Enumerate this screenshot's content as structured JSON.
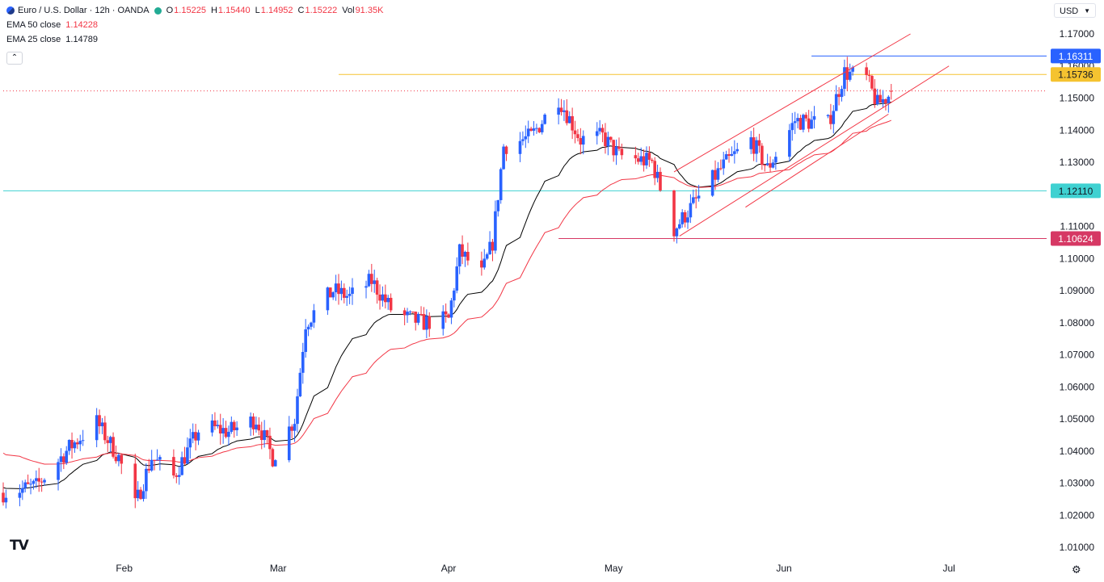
{
  "header": {
    "symbol": "Euro / U.S. Dollar · 12h · OANDA",
    "open_label": "O",
    "open": "1.15225",
    "high_label": "H",
    "high": "1.15440",
    "low_label": "L",
    "low": "1.14952",
    "close_label": "C",
    "close": "1.15222",
    "vol_label": "Vol",
    "vol": "91.35K"
  },
  "indicators": [
    {
      "label": "EMA 50 close",
      "value": "1.14228",
      "color": "#f23645"
    },
    {
      "label": "EMA 25 close",
      "value": "1.14789",
      "color": "#000000"
    }
  ],
  "currency": "USD",
  "logo": "TV",
  "icons": {
    "symbol": "euro-flag-icon",
    "collapse": "chevron-up-icon",
    "settings": "gear-icon",
    "currency": "chevron-down-icon"
  },
  "colors": {
    "up": "#2962ff",
    "down": "#f23645",
    "ema25": "#000000",
    "ema50": "#f23645",
    "channel": "#f23645",
    "support": "#d63864",
    "resistance_yellow": "#f5c330",
    "resistance_blue": "#2962ff",
    "cyan": "#3fd1d1"
  },
  "chart_data": {
    "type": "candlestick",
    "y_ticks": [
      "1.17000",
      "1.16000",
      "1.15000",
      "1.14000",
      "1.13000",
      "1.12000",
      "1.11000",
      "1.10000",
      "1.09000",
      "1.08000",
      "1.07000",
      "1.06000",
      "1.05000",
      "1.04000",
      "1.03000",
      "1.02000",
      "1.01000"
    ],
    "x_ticks": [
      {
        "label": "Feb",
        "date": "2025-02-01"
      },
      {
        "label": "Mar",
        "date": "2025-03-01"
      },
      {
        "label": "Apr",
        "date": "2025-04-01"
      },
      {
        "label": "May",
        "date": "2025-05-01"
      },
      {
        "label": "Jun",
        "date": "2025-06-01"
      },
      {
        "label": "Jul",
        "date": "2025-07-01"
      }
    ],
    "date_range": [
      "2025-01-10",
      "2025-07-12"
    ],
    "ylim": [
      1.0078,
      1.1775
    ],
    "anchors": [
      {
        "date": "2025-01-10",
        "value": 1.027
      },
      {
        "date": "2025-01-16",
        "value": 1.029
      },
      {
        "date": "2025-01-22",
        "value": 1.041
      },
      {
        "date": "2025-01-27",
        "value": 1.049
      },
      {
        "date": "2025-01-31",
        "value": 1.038
      },
      {
        "date": "2025-02-03",
        "value": 1.023
      },
      {
        "date": "2025-02-06",
        "value": 1.038
      },
      {
        "date": "2025-02-10",
        "value": 1.032
      },
      {
        "date": "2025-02-15",
        "value": 1.048
      },
      {
        "date": "2025-02-20",
        "value": 1.046
      },
      {
        "date": "2025-02-25",
        "value": 1.05
      },
      {
        "date": "2025-02-28",
        "value": 1.038
      },
      {
        "date": "2025-03-04",
        "value": 1.05
      },
      {
        "date": "2025-03-06",
        "value": 1.08
      },
      {
        "date": "2025-03-11",
        "value": 1.09
      },
      {
        "date": "2025-03-14",
        "value": 1.088
      },
      {
        "date": "2025-03-18",
        "value": 1.093
      },
      {
        "date": "2025-03-22",
        "value": 1.083
      },
      {
        "date": "2025-03-27",
        "value": 1.08
      },
      {
        "date": "2025-04-01",
        "value": 1.081
      },
      {
        "date": "2025-04-03",
        "value": 1.102
      },
      {
        "date": "2025-04-07",
        "value": 1.095
      },
      {
        "date": "2025-04-09",
        "value": 1.105
      },
      {
        "date": "2025-04-11",
        "value": 1.135
      },
      {
        "date": "2025-04-16",
        "value": 1.138
      },
      {
        "date": "2025-04-21",
        "value": 1.15
      },
      {
        "date": "2025-04-25",
        "value": 1.137
      },
      {
        "date": "2025-04-29",
        "value": 1.138
      },
      {
        "date": "2025-05-02",
        "value": 1.132
      },
      {
        "date": "2025-05-08",
        "value": 1.13
      },
      {
        "date": "2025-05-12",
        "value": 1.109
      },
      {
        "date": "2025-05-16",
        "value": 1.118
      },
      {
        "date": "2025-05-21",
        "value": 1.129
      },
      {
        "date": "2025-05-26",
        "value": 1.137
      },
      {
        "date": "2025-05-29",
        "value": 1.128
      },
      {
        "date": "2025-06-03",
        "value": 1.143
      },
      {
        "date": "2025-06-09",
        "value": 1.142
      },
      {
        "date": "2025-06-12",
        "value": 1.158
      },
      {
        "date": "2025-06-16",
        "value": 1.156
      },
      {
        "date": "2025-06-18",
        "value": 1.148
      },
      {
        "date": "2025-06-21",
        "value": 1.1522
      }
    ],
    "ema25_start": 1.029,
    "ema50_start": 1.04,
    "horizontal_levels": [
      {
        "price": 1.16311,
        "label": "1.16311",
        "color": "#2962ff",
        "from_date": "2025-06-06"
      },
      {
        "price": 1.15736,
        "label": "1.15736",
        "color": "#f5c330",
        "from_date": "2025-03-12"
      },
      {
        "price": 1.1211,
        "label": "1.12110",
        "color": "#3fd1d1",
        "from_date": "2025-01-10"
      },
      {
        "price": 1.10624,
        "label": "1.10624",
        "color": "#d63864",
        "from_date": "2025-04-21"
      }
    ],
    "last_price": 1.15222,
    "channel": [
      {
        "from": {
          "date": "2025-05-12",
          "value": 1.127
        },
        "to": {
          "date": "2025-06-24",
          "value": 1.17
        }
      },
      {
        "from": {
          "date": "2025-05-13",
          "value": 1.107
        },
        "to": {
          "date": "2025-07-01",
          "value": 1.16
        }
      },
      {
        "from": {
          "date": "2025-05-25",
          "value": 1.116
        },
        "to": {
          "date": "2025-06-20",
          "value": 1.145
        }
      }
    ]
  }
}
